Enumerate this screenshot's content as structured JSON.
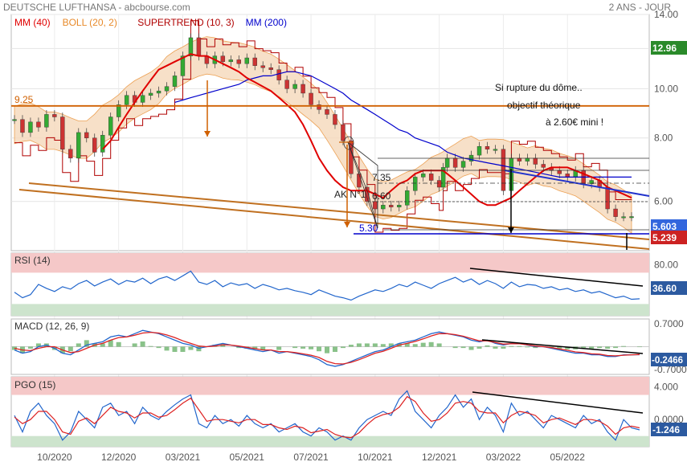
{
  "header": {
    "title": "DEUTSCHE LUFTHANSA - abcbourse.com",
    "period": "2 ANS - JOUR"
  },
  "colors": {
    "ma40": "#e00000",
    "boll": "#e88a2a",
    "supertrend": "#b00000",
    "ma200": "#0000cc",
    "candle_up": "#33aa33",
    "candle_down": "#cc3333",
    "orange_line": "#d06000",
    "trend_line": "#c07020",
    "rsi": "#2266cc",
    "signal": "#dd2222",
    "panel_red": "#f5c8c8",
    "panel_green": "#cde4cd",
    "macd_hist": "#3a9a3a"
  },
  "legend": {
    "ma40": "MM (40)",
    "boll": "BOLL (20, 2)",
    "supertrend": "SUPERTREND (10, 3)",
    "ma200": "MM (200)"
  },
  "annotations": {
    "comment_line1": "Si rupture du dôme..",
    "comment_line2": "objectif théorique",
    "comment_line3": "à 2.60€ mini !",
    "ak": "AK N°1",
    "level_925": "9.25",
    "level_735": "7.35",
    "level_660": "6.60",
    "level_530": "5.30"
  },
  "price_badges": {
    "last_close": "12.96",
    "current": "5.603",
    "supertrend": "5.239"
  },
  "indicator_badges": {
    "rsi": "36.60",
    "macd": "-0.2466",
    "pgo": "-1.246"
  },
  "panel_labels": {
    "rsi": "RSI (14)",
    "macd": "MACD (12, 26, 9)",
    "pgo": "PGO (15)"
  },
  "chart_data": [
    {
      "type": "line",
      "panel": "price",
      "title": "DEUTSCHE LUFTHANSA - abcbourse.com",
      "scale": "log",
      "ylim": [
        4.8,
        14.0
      ],
      "y_ticks": [
        "14.00",
        "12.00",
        "10.00",
        "8.00",
        "6.00"
      ],
      "y_tick_values": [
        14,
        12,
        10,
        8,
        6
      ],
      "x_ticks": [
        "10/2020",
        "12/2020",
        "03/2021",
        "05/2021",
        "07/2021",
        "10/2021",
        "12/2021",
        "03/2022",
        "05/2022"
      ],
      "x_tick_index": [
        5,
        13,
        21,
        29,
        37,
        45,
        53,
        61,
        69
      ],
      "x": [
        0,
        1,
        2,
        3,
        4,
        5,
        6,
        7,
        8,
        9,
        10,
        11,
        12,
        13,
        14,
        15,
        16,
        17,
        18,
        19,
        20,
        21,
        22,
        23,
        24,
        25,
        26,
        27,
        28,
        29,
        30,
        31,
        32,
        33,
        34,
        35,
        36,
        37,
        38,
        39,
        40,
        41,
        42,
        43,
        44,
        45,
        46,
        47,
        48,
        49,
        50,
        51,
        52,
        53,
        53.5,
        54,
        55,
        56,
        57,
        58,
        59,
        60,
        61,
        62,
        63,
        64,
        65,
        66,
        67,
        68,
        69,
        70,
        71,
        72,
        73,
        74,
        75,
        76,
        77
      ],
      "series": [
        {
          "name": "close",
          "values": [
            8.7,
            8.2,
            8.6,
            8.4,
            8.9,
            8.8,
            7.6,
            7.3,
            8.2,
            8.0,
            7.5,
            8.1,
            8.8,
            9.3,
            9.7,
            9.4,
            9.7,
            9.8,
            9.9,
            10.1,
            10.6,
            11.6,
            12.6,
            11.6,
            11.2,
            11.6,
            11.3,
            11.4,
            11.2,
            11.5,
            11.1,
            11.0,
            10.9,
            10.4,
            10.0,
            10.2,
            9.8,
            9.3,
            9.1,
            8.9,
            8.5,
            7.9,
            6.8,
            6.4,
            6.0,
            5.8,
            5.9,
            5.85,
            5.9,
            6.3,
            6.7,
            6.8,
            6.6,
            6.4,
            7.0,
            7.3,
            7.0,
            7.2,
            7.4,
            7.7,
            7.6,
            7.6,
            6.3,
            7.3,
            7.2,
            7.3,
            7.1,
            7.0,
            6.9,
            6.8,
            6.7,
            6.9,
            6.5,
            6.6,
            6.4,
            5.8,
            5.6,
            5.6,
            5.603
          ]
        },
        {
          "name": "MM (40)",
          "values": [
            null,
            null,
            null,
            null,
            null,
            null,
            null,
            null,
            null,
            null,
            null,
            7.6,
            7.9,
            8.4,
            8.9,
            9.4,
            9.9,
            10.4,
            10.9,
            11.1,
            11.3,
            11.5,
            11.7,
            11.6,
            11.6,
            11.4,
            11.2,
            11.0,
            10.8,
            10.5,
            10.3,
            10.1,
            9.9,
            9.6,
            9.3,
            9.0,
            8.5,
            7.9,
            7.3,
            6.9,
            6.6,
            6.4,
            6.3,
            6.3,
            6.3,
            6.2,
            6.1,
            6.3,
            6.5,
            6.6,
            6.8,
            6.9,
            6.9,
            6.9,
            6.9,
            6.8,
            6.6,
            6.4,
            6.2,
            6.0,
            5.9,
            5.9,
            6.0,
            6.1,
            6.3,
            6.5,
            6.7,
            6.9,
            7.0,
            7.0,
            7.0,
            6.9,
            6.8,
            6.7,
            6.6,
            6.4,
            6.3,
            6.2,
            6.1
          ]
        },
        {
          "name": "MM (200)",
          "values": [
            null,
            null,
            null,
            null,
            null,
            null,
            null,
            null,
            null,
            null,
            null,
            null,
            null,
            null,
            null,
            null,
            null,
            null,
            null,
            null,
            9.4,
            9.5,
            9.6,
            9.7,
            9.8,
            9.9,
            10.0,
            10.1,
            10.2,
            10.4,
            10.5,
            10.6,
            10.6,
            10.7,
            10.8,
            10.8,
            10.7,
            10.6,
            10.4,
            10.2,
            10.0,
            9.8,
            9.5,
            9.3,
            9.1,
            8.9,
            8.7,
            8.5,
            8.3,
            8.2,
            8.0,
            7.9,
            7.8,
            7.7,
            7.6,
            7.5,
            7.4,
            7.3,
            7.25,
            7.2,
            7.15,
            7.1,
            7.05,
            7.0,
            6.95,
            6.9,
            6.85,
            6.8,
            6.75,
            6.7,
            6.7,
            6.7,
            6.7,
            6.7,
            6.7,
            6.7,
            6.7,
            6.7,
            6.7
          ]
        }
      ]
    },
    {
      "type": "line",
      "panel": "rsi",
      "title": "RSI (14)",
      "ylim": [
        15,
        95
      ],
      "y_ticks": [
        "80.00"
      ],
      "y_tick_values": [
        80
      ],
      "zones": {
        "overbought": 70,
        "oversold": 30
      },
      "series": [
        {
          "name": "RSI",
          "values": [
            45,
            38,
            42,
            55,
            50,
            46,
            52,
            49,
            56,
            60,
            53,
            58,
            62,
            55,
            60,
            58,
            63,
            56,
            62,
            65,
            60,
            66,
            72,
            58,
            55,
            60,
            52,
            57,
            54,
            56,
            50,
            55,
            52,
            48,
            50,
            47,
            45,
            42,
            48,
            44,
            40,
            38,
            35,
            40,
            44,
            48,
            46,
            50,
            55,
            52,
            58,
            54,
            50,
            56,
            60,
            64,
            58,
            62,
            55,
            60,
            56,
            50,
            58,
            52,
            55,
            54,
            50,
            52,
            48,
            50,
            46,
            48,
            44,
            46,
            42,
            38,
            40,
            36,
            36.6
          ]
        }
      ]
    },
    {
      "type": "line",
      "panel": "macd",
      "title": "MACD (12, 26, 9)",
      "ylim": [
        -0.85,
        0.85
      ],
      "y_ticks": [
        "0.7000",
        "-0.7000"
      ],
      "y_tick_values": [
        0.7,
        -0.7
      ],
      "series": [
        {
          "name": "MACD",
          "values": [
            -0.1,
            -0.2,
            -0.15,
            0.0,
            0.05,
            -0.05,
            -0.2,
            -0.25,
            -0.1,
            0.05,
            0.1,
            0.15,
            0.3,
            0.35,
            0.3,
            0.4,
            0.5,
            0.45,
            0.4,
            0.3,
            0.2,
            0.1,
            0.05,
            -0.05,
            0.0,
            0.05,
            0.1,
            0.05,
            0.0,
            -0.05,
            -0.1,
            -0.15,
            -0.1,
            -0.2,
            -0.15,
            -0.2,
            -0.25,
            -0.3,
            -0.4,
            -0.55,
            -0.6,
            -0.55,
            -0.45,
            -0.35,
            -0.25,
            -0.15,
            -0.1,
            0.0,
            0.1,
            0.15,
            0.2,
            0.3,
            0.4,
            0.45,
            0.4,
            0.35,
            0.3,
            0.2,
            0.15,
            0.2,
            0.1,
            0.05,
            0.1,
            0.1,
            0.05,
            0.0,
            0.0,
            -0.05,
            -0.1,
            -0.15,
            -0.2,
            -0.2,
            -0.25,
            -0.25,
            -0.3,
            -0.3,
            -0.25,
            -0.25,
            -0.2466
          ]
        },
        {
          "name": "Signal",
          "values": [
            -0.05,
            -0.1,
            -0.12,
            -0.05,
            0.0,
            0.0,
            -0.1,
            -0.18,
            -0.15,
            -0.05,
            0.05,
            0.1,
            0.2,
            0.28,
            0.3,
            0.35,
            0.42,
            0.44,
            0.42,
            0.36,
            0.28,
            0.18,
            0.1,
            0.02,
            0.0,
            0.02,
            0.06,
            0.05,
            0.02,
            -0.02,
            -0.06,
            -0.1,
            -0.1,
            -0.15,
            -0.15,
            -0.18,
            -0.22,
            -0.26,
            -0.33,
            -0.45,
            -0.52,
            -0.53,
            -0.48,
            -0.4,
            -0.3,
            -0.2,
            -0.14,
            -0.05,
            0.05,
            0.1,
            0.16,
            0.24,
            0.33,
            0.4,
            0.4,
            0.37,
            0.32,
            0.25,
            0.18,
            0.18,
            0.13,
            0.08,
            0.09,
            0.09,
            0.06,
            0.02,
            0.0,
            -0.03,
            -0.07,
            -0.11,
            -0.16,
            -0.18,
            -0.22,
            -0.23,
            -0.27,
            -0.28,
            -0.26,
            -0.25,
            -0.24
          ]
        }
      ]
    },
    {
      "type": "line",
      "panel": "pgo",
      "title": "PGO (15)",
      "ylim": [
        -3.3,
        5.2
      ],
      "y_ticks": [
        "4.000",
        "0.0000"
      ],
      "y_tick_values": [
        4,
        0
      ],
      "zones": {
        "overbought": 3,
        "oversold": -2
      },
      "series": [
        {
          "name": "PGO",
          "values": [
            0.5,
            -1.5,
            1.0,
            2.0,
            0.5,
            -0.5,
            -2.5,
            -1.5,
            1.0,
            0.0,
            -1.0,
            1.5,
            2.0,
            0.5,
            1.0,
            -0.5,
            1.5,
            0.5,
            0.0,
            1.0,
            1.8,
            2.5,
            3.0,
            -0.5,
            -1.0,
            0.5,
            -0.5,
            0.0,
            -0.8,
            0.5,
            -0.5,
            -1.0,
            -0.5,
            -1.5,
            -1.0,
            -0.5,
            -1.5,
            -2.0,
            -1.0,
            -1.5,
            -2.5,
            -2.0,
            -2.5,
            -1.0,
            0.0,
            0.5,
            1.0,
            0.5,
            2.5,
            3.5,
            1.0,
            0.0,
            -1.0,
            0.5,
            1.5,
            3.0,
            1.5,
            2.5,
            0.0,
            1.5,
            0.5,
            -1.5,
            2.0,
            0.5,
            1.0,
            0.0,
            -1.0,
            0.5,
            0.0,
            -0.5,
            -1.0,
            0.5,
            -0.5,
            0.0,
            -1.5,
            -2.5,
            0.0,
            -1.0,
            -1.246
          ]
        },
        {
          "name": "Signal",
          "values": [
            0.3,
            -0.5,
            0.0,
            1.0,
            1.0,
            0.0,
            -1.5,
            -1.8,
            -0.2,
            0.2,
            -0.5,
            0.5,
            1.5,
            1.0,
            0.8,
            0.2,
            0.8,
            0.8,
            0.3,
            0.5,
            1.2,
            2.0,
            2.6,
            1.2,
            -0.2,
            0.0,
            0.0,
            -0.2,
            -0.4,
            0.0,
            0.0,
            -0.6,
            -0.6,
            -1.0,
            -1.2,
            -0.8,
            -1.0,
            -1.6,
            -1.4,
            -1.2,
            -1.8,
            -2.1,
            -2.2,
            -1.6,
            -0.6,
            0.2,
            0.6,
            0.8,
            1.5,
            2.8,
            2.2,
            0.8,
            -0.2,
            0.0,
            0.8,
            2.0,
            2.2,
            2.0,
            1.0,
            0.8,
            0.8,
            -0.4,
            0.5,
            1.0,
            0.8,
            0.5,
            -0.4,
            0.0,
            0.2,
            -0.2,
            -0.6,
            0.0,
            0.0,
            -0.2,
            -0.8,
            -1.8,
            -1.0,
            -0.8,
            -1.0
          ]
        }
      ]
    }
  ]
}
